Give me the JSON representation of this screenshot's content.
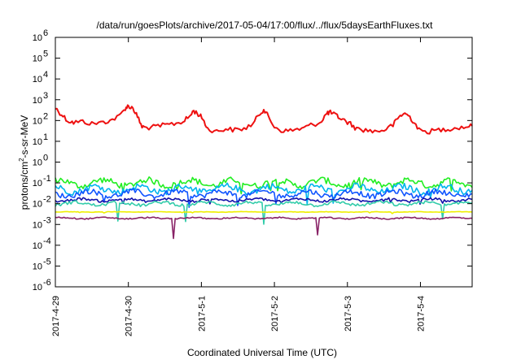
{
  "chart_data": {
    "type": "line",
    "title": "/data/run/goesPlots/archive/2017-05-04/17:00/flux/../flux/5daysEarthFluxes.txt",
    "xlabel": "Coordinated Universal Time (UTC)",
    "ylabel_prefix": "protons/cm",
    "ylabel_sup": "2",
    "ylabel_suffix": "-s-sr-MeV",
    "yscale": "log",
    "ylim": [
      1e-06,
      1000000.0
    ],
    "xlim": [
      "2017-04-29T00:00",
      "2017-05-04T17:00"
    ],
    "x_ticks": [
      "2017-4-29",
      "2017-4-30",
      "2017-5-1",
      "2017-5-2",
      "2017-5-3",
      "2017-5-4"
    ],
    "y_tick_exponents": [
      "-6",
      "-5",
      "-4",
      "-3",
      "-2",
      "-1",
      "0",
      "1",
      "2",
      "3",
      "4",
      "5",
      "6"
    ],
    "y_tick_base": "10",
    "grid": false,
    "legend": "none",
    "series": [
      {
        "color": "#ee1111",
        "points": [
          [
            "2017-04-29T00:00",
            400
          ],
          [
            "2017-04-29T02:00",
            200
          ],
          [
            "2017-04-29T04:00",
            100
          ],
          [
            "2017-04-29T06:00",
            80
          ],
          [
            "2017-04-29T09:00",
            90
          ],
          [
            "2017-04-29T12:00",
            70
          ],
          [
            "2017-04-29T15:00",
            80
          ],
          [
            "2017-04-29T18:00",
            100
          ],
          [
            "2017-04-29T21:00",
            160
          ],
          [
            "2017-04-29T23:00",
            400
          ],
          [
            "2017-04-30T00:00",
            500
          ],
          [
            "2017-04-30T01:30",
            400
          ],
          [
            "2017-04-30T03:00",
            150
          ],
          [
            "2017-04-30T04:30",
            50
          ],
          [
            "2017-04-30T06:00",
            45
          ],
          [
            "2017-04-30T09:00",
            50
          ],
          [
            "2017-04-30T12:00",
            60
          ],
          [
            "2017-04-30T15:00",
            70
          ],
          [
            "2017-04-30T18:00",
            90
          ],
          [
            "2017-04-30T20:00",
            150
          ],
          [
            "2017-04-30T21:30",
            300
          ],
          [
            "2017-04-30T23:00",
            200
          ],
          [
            "2017-05-01T00:30",
            120
          ],
          [
            "2017-05-01T02:00",
            40
          ],
          [
            "2017-05-01T05:00",
            30
          ],
          [
            "2017-05-01T08:00",
            40
          ],
          [
            "2017-05-01T11:00",
            35
          ],
          [
            "2017-05-01T14:00",
            40
          ],
          [
            "2017-05-01T17:00",
            70
          ],
          [
            "2017-05-01T19:00",
            200
          ],
          [
            "2017-05-01T20:30",
            350
          ],
          [
            "2017-05-01T22:00",
            150
          ],
          [
            "2017-05-02T00:00",
            50
          ],
          [
            "2017-05-02T03:00",
            30
          ],
          [
            "2017-05-02T06:00",
            35
          ],
          [
            "2017-05-02T09:00",
            40
          ],
          [
            "2017-05-02T12:00",
            60
          ],
          [
            "2017-05-02T15:00",
            80
          ],
          [
            "2017-05-02T17:00",
            200
          ],
          [
            "2017-05-02T18:00",
            250
          ],
          [
            "2017-05-02T19:30",
            200
          ],
          [
            "2017-05-02T21:00",
            150
          ],
          [
            "2017-05-02T23:00",
            100
          ],
          [
            "2017-05-03T01:00",
            70
          ],
          [
            "2017-05-03T03:00",
            40
          ],
          [
            "2017-05-03T06:00",
            35
          ],
          [
            "2017-05-03T09:00",
            30
          ],
          [
            "2017-05-03T12:00",
            35
          ],
          [
            "2017-05-03T15:00",
            60
          ],
          [
            "2017-05-03T17:00",
            150
          ],
          [
            "2017-05-03T18:30",
            220
          ],
          [
            "2017-05-03T20:00",
            180
          ],
          [
            "2017-05-03T22:00",
            80
          ],
          [
            "2017-05-04T00:00",
            30
          ],
          [
            "2017-05-04T03:00",
            30
          ],
          [
            "2017-05-04T06:00",
            35
          ],
          [
            "2017-05-04T09:00",
            40
          ],
          [
            "2017-05-04T12:00",
            45
          ],
          [
            "2017-05-04T15:00",
            50
          ],
          [
            "2017-05-04T17:00",
            55
          ]
        ]
      },
      {
        "color": "#22ee22",
        "level": 0.1,
        "amplitude": 0.3,
        "spikes": 0.4
      },
      {
        "color": "#00b4ee",
        "level": 0.05,
        "amplitude": 0.3,
        "spikes": 0.5
      },
      {
        "color": "#1055ff",
        "level": 0.03,
        "amplitude": 0.25,
        "spikes": 0.5
      },
      {
        "color": "#1111aa",
        "level": 0.015,
        "amplitude": 0.12,
        "spikes": 0.2
      },
      {
        "color": "#33ccaa",
        "level": 0.01,
        "amplitude": 0.15,
        "spikes": 0.7
      },
      {
        "color": "#eeee00",
        "level": 0.004,
        "amplitude": 0.02,
        "spikes": 0.05
      },
      {
        "color": "#882266",
        "level": 0.002,
        "amplitude": 0.06,
        "spikes": 0.8
      }
    ]
  }
}
